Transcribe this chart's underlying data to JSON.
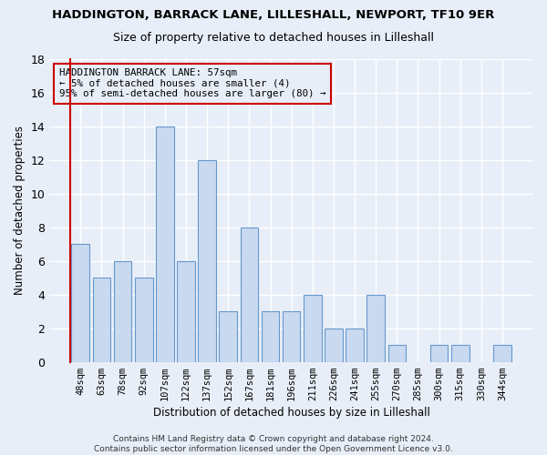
{
  "title": "HADDINGTON, BARRACK LANE, LILLESHALL, NEWPORT, TF10 9ER",
  "subtitle": "Size of property relative to detached houses in Lilleshall",
  "xlabel": "Distribution of detached houses by size in Lilleshall",
  "ylabel": "Number of detached properties",
  "categories": [
    "48sqm",
    "63sqm",
    "78sqm",
    "92sqm",
    "107sqm",
    "122sqm",
    "137sqm",
    "152sqm",
    "167sqm",
    "181sqm",
    "196sqm",
    "211sqm",
    "226sqm",
    "241sqm",
    "255sqm",
    "270sqm",
    "285sqm",
    "300sqm",
    "315sqm",
    "330sqm",
    "344sqm"
  ],
  "values": [
    7,
    5,
    6,
    5,
    14,
    6,
    12,
    3,
    8,
    3,
    3,
    4,
    2,
    2,
    4,
    1,
    0,
    1,
    1,
    0,
    1
  ],
  "bar_color": "#c8d9f0",
  "bar_edge_color": "#6699cc",
  "background_color": "#e8eef8",
  "grid_color": "#ffffff",
  "annotation_line_color": "#cc0000",
  "annotation_box_edge_color": "#cc0000",
  "annotation_line1": "HADDINGTON BARRACK LANE: 57sqm",
  "annotation_line2": "← 5% of detached houses are smaller (4)",
  "annotation_line3": "95% of semi-detached houses are larger (80) →",
  "ylim": [
    0,
    18
  ],
  "yticks": [
    0,
    2,
    4,
    6,
    8,
    10,
    12,
    14,
    16,
    18
  ],
  "footer_line1": "Contains HM Land Registry data © Crown copyright and database right 2024.",
  "footer_line2": "Contains public sector information licensed under the Open Government Licence v3.0."
}
